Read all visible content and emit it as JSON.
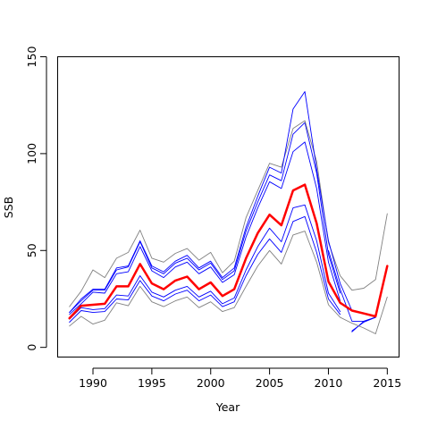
{
  "chart_data": {
    "type": "line",
    "title": "",
    "xlabel": "Year",
    "ylabel": "SSB",
    "xlim": [
      1987,
      2016
    ],
    "ylim": [
      -5,
      150
    ],
    "grid": false,
    "x_ticks": [
      1990,
      1995,
      2000,
      2005,
      2010,
      2015
    ],
    "y_ticks": [
      0,
      50,
      100,
      150
    ],
    "x": [
      1988,
      1989,
      1990,
      1991,
      1992,
      1993,
      1994,
      1995,
      1996,
      1997,
      1998,
      1999,
      2000,
      2001,
      2002,
      2003,
      2004,
      2005,
      2006,
      2007,
      2008,
      2009,
      2010,
      2011,
      2012,
      2013,
      2014,
      2015
    ],
    "series": [
      {
        "role": "central",
        "color": "#ff0000",
        "width": 2.5,
        "values": [
          15.0,
          21.5,
          22.0,
          22.5,
          31.5,
          31.5,
          43.0,
          33.0,
          30.0,
          34.5,
          36.5,
          30.0,
          33.5,
          26.5,
          30.0,
          46.0,
          59.0,
          68.5,
          63.0,
          81.0,
          84.0,
          64.0,
          34.0,
          23.0,
          19.0,
          17.5,
          16.0,
          42.0
        ]
      },
      {
        "role": "band-1-upper",
        "color": "#0000ff",
        "width": 0.9,
        "values": [
          18.0,
          24.0,
          29.5,
          29.5,
          40.0,
          41.5,
          54.5,
          41.0,
          38.0,
          43.5,
          46.0,
          40.0,
          43.5,
          35.0,
          39.5,
          60.0,
          75.0,
          89.0,
          86.0,
          110.0,
          116.0,
          90.0,
          48.0,
          28.0,
          null,
          null,
          null,
          null
        ]
      },
      {
        "role": "band-1-lower",
        "color": "#0000ff",
        "width": 0.9,
        "values": [
          13.0,
          19.0,
          18.0,
          18.5,
          25.0,
          24.5,
          34.5,
          26.5,
          24.0,
          27.5,
          29.5,
          24.0,
          27.0,
          21.0,
          23.5,
          37.0,
          48.0,
          56.0,
          49.0,
          65.0,
          67.5,
          49.0,
          25.0,
          17.0,
          null,
          null,
          null,
          null
        ]
      },
      {
        "role": "band-2-upper",
        "color": "#0000ff",
        "width": 0.9,
        "values": [
          null,
          null,
          null,
          null,
          null,
          null,
          null,
          null,
          null,
          null,
          null,
          null,
          null,
          null,
          null,
          null,
          null,
          null,
          null,
          null,
          null,
          null,
          50.0,
          30.0,
          13.5,
          13.5,
          15.5,
          null
        ]
      },
      {
        "role": "band-2-lower",
        "color": "#0000ff",
        "width": 0.9,
        "values": [
          null,
          null,
          null,
          null,
          null,
          null,
          null,
          null,
          null,
          null,
          null,
          null,
          null,
          null,
          null,
          null,
          null,
          null,
          null,
          null,
          null,
          null,
          null,
          null,
          8.0,
          13.5,
          15.5,
          null
        ]
      },
      {
        "role": "band-3-upper",
        "color": "#0000ff",
        "width": 0.9,
        "values": [
          17.0,
          22.5,
          28.5,
          28.0,
          38.0,
          39.0,
          52.0,
          39.5,
          36.0,
          41.5,
          44.0,
          38.0,
          41.5,
          33.5,
          37.5,
          57.0,
          72.0,
          85.5,
          82.0,
          101.0,
          106.0,
          82.0,
          44.0,
          24.0,
          null,
          null,
          null,
          null
        ]
      },
      {
        "role": "band-3-lower",
        "color": "#0000ff",
        "width": 0.9,
        "values": [
          14.5,
          20.5,
          19.5,
          20.0,
          27.0,
          26.5,
          37.0,
          28.5,
          26.0,
          29.5,
          31.5,
          26.0,
          29.0,
          22.5,
          25.5,
          40.0,
          52.0,
          61.5,
          54.5,
          72.0,
          73.5,
          55.0,
          28.0,
          18.5,
          null,
          null,
          null,
          null
        ]
      },
      {
        "role": "band-4-upper",
        "color": "#0000ff",
        "width": 0.9,
        "values": [
          null,
          null,
          null,
          null,
          null,
          null,
          null,
          null,
          null,
          null,
          null,
          null,
          null,
          null,
          null,
          null,
          null,
          null,
          null,
          null,
          null,
          null,
          null,
          null,
          8.5,
          13.0,
          15.5,
          null
        ]
      },
      {
        "role": "band-4-lower",
        "color": "#0000ff",
        "width": 0.9,
        "values": [
          null,
          null,
          null,
          null,
          null,
          null,
          null,
          null,
          null,
          null,
          null,
          null,
          null,
          null,
          null,
          null,
          null,
          null,
          null,
          null,
          null,
          null,
          null,
          null,
          null,
          null,
          null,
          null
        ]
      },
      {
        "role": "outer-upper",
        "color": "#808080",
        "width": 0.9,
        "values": [
          21.0,
          29.0,
          40.0,
          36.0,
          46.0,
          49.0,
          60.5,
          46.0,
          44.0,
          48.5,
          51.0,
          45.0,
          49.0,
          38.5,
          44.5,
          67.0,
          81.0,
          95.0,
          93.0,
          113.0,
          117.0,
          96.0,
          54.0,
          37.0,
          29.5,
          30.5,
          35.0,
          69.0
        ]
      },
      {
        "role": "outer-lower",
        "color": "#808080",
        "width": 0.9,
        "values": [
          11.0,
          16.0,
          12.0,
          14.0,
          23.0,
          21.5,
          31.5,
          23.5,
          21.0,
          24.0,
          26.0,
          20.5,
          23.5,
          18.5,
          20.5,
          31.5,
          42.0,
          50.0,
          43.0,
          58.0,
          60.0,
          44.0,
          22.0,
          15.5,
          12.5,
          10.0,
          7.0,
          26.0
        ]
      },
      {
        "role": "peak-upper",
        "color": "#0000ff",
        "width": 0.9,
        "values": [
          18.0,
          25.0,
          30.0,
          30.0,
          41.0,
          42.0,
          55.0,
          42.0,
          39.0,
          44.5,
          47.5,
          41.0,
          44.5,
          36.0,
          41.0,
          62.0,
          78.0,
          93.0,
          90.0,
          123.0,
          132.0,
          92.0,
          55.0,
          33.0,
          19.0,
          null,
          null,
          null
        ]
      }
    ]
  }
}
